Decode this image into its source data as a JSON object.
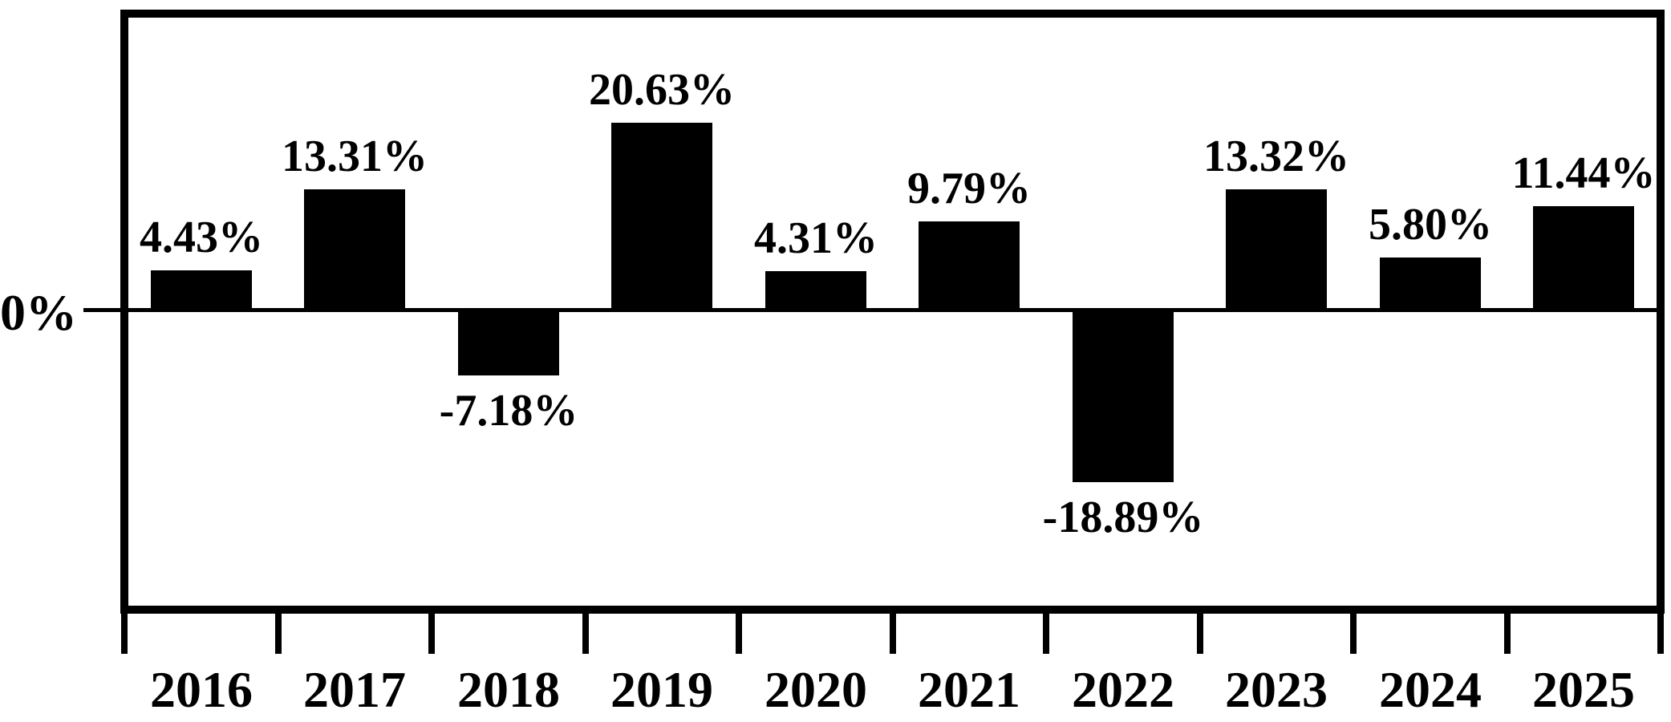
{
  "chart_data": {
    "type": "bar",
    "title": "",
    "xlabel": "",
    "ylabel": "",
    "categories": [
      "2016",
      "2017",
      "2018",
      "2019",
      "2020",
      "2021",
      "2022",
      "2023",
      "2024",
      "2025"
    ],
    "values": [
      4.43,
      13.31,
      -7.18,
      20.63,
      4.31,
      9.79,
      -18.89,
      13.32,
      5.8,
      11.44
    ],
    "value_labels": [
      "4.43%",
      "13.31%",
      "-7.18%",
      "20.63%",
      "4.31%",
      "9.79%",
      "-18.89%",
      "13.32%",
      "5.80%",
      "11.44%"
    ],
    "y_axis": {
      "zero_label": "0%"
    },
    "ylim": [
      -32.5,
      32.2
    ],
    "grid": false,
    "legend": null,
    "bar_color": "#000000",
    "text_color": "#000000",
    "background_color": "#ffffff"
  }
}
